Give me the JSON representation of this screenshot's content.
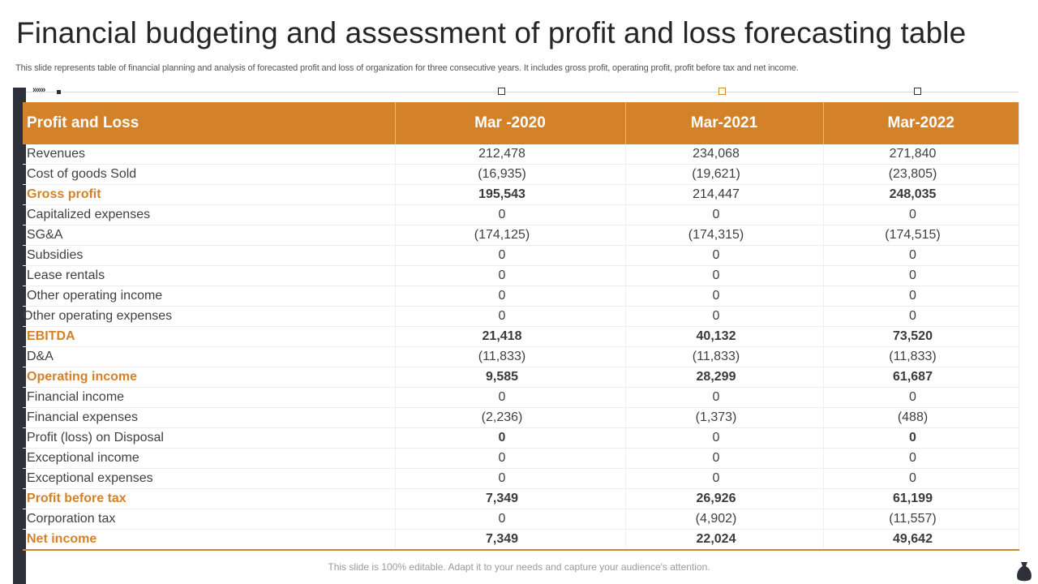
{
  "header": {
    "title": "Financial budgeting and assessment of profit and loss forecasting table",
    "subtitle": "This slide represents table of financial planning and analysis of forecasted profit and loss of organization for three consecutive years.  It includes gross profit, operating profit, profit before tax  and net income."
  },
  "decor": {
    "arrows": "»»»"
  },
  "table": {
    "columns": [
      "Profit and Loss",
      "Mar -2020",
      "Mar-2021",
      "Mar-2022"
    ],
    "rows": [
      {
        "label": "Revenues",
        "values": [
          "212,478",
          "234,068",
          "271,840"
        ],
        "highlight": false
      },
      {
        "label": "Cost of goods Sold",
        "values": [
          "(16,935)",
          "(19,621)",
          "(23,805)"
        ],
        "highlight": false
      },
      {
        "label": "Gross profit",
        "values": [
          "195,543",
          "214,447",
          "248,035"
        ],
        "highlight": true,
        "bold": [
          true,
          false,
          true
        ]
      },
      {
        "label": "Capitalized expenses",
        "values": [
          "0",
          "0",
          "0"
        ],
        "highlight": false
      },
      {
        "label": "SG&A",
        "values": [
          "(174,125)",
          "(174,315)",
          "(174,515)"
        ],
        "highlight": false
      },
      {
        "label": "Subsidies",
        "values": [
          "0",
          "0",
          "0"
        ],
        "highlight": false
      },
      {
        "label": "Lease rentals",
        "values": [
          "0",
          "0",
          "0"
        ],
        "highlight": false
      },
      {
        "label": "Other operating income",
        "values": [
          "0",
          "0",
          "0"
        ],
        "highlight": false
      },
      {
        "label": "Other operating expenses",
        "values": [
          "0",
          "0",
          "0"
        ],
        "highlight": false,
        "shift": true
      },
      {
        "label": "EBITDA",
        "values": [
          "21,418",
          "40,132",
          "73,520"
        ],
        "highlight": true,
        "bold": [
          true,
          true,
          true
        ]
      },
      {
        "label": "D&A",
        "values": [
          "(11,833)",
          "(11,833)",
          "(11,833)"
        ],
        "highlight": false
      },
      {
        "label": "Operating income",
        "values": [
          "9,585",
          "28,299",
          "61,687"
        ],
        "highlight": true,
        "bold": [
          true,
          true,
          true
        ]
      },
      {
        "label": "Financial income",
        "values": [
          "0",
          "0",
          "0"
        ],
        "highlight": false
      },
      {
        "label": "Financial expenses",
        "values": [
          "(2,236)",
          "(1,373)",
          "(488)"
        ],
        "highlight": false
      },
      {
        "label": "Profit (loss) on Disposal",
        "values": [
          "0",
          "0",
          "0"
        ],
        "highlight": false,
        "boldvals": [
          true,
          false,
          true
        ]
      },
      {
        "label": "Exceptional income",
        "values": [
          "0",
          "0",
          "0"
        ],
        "highlight": false
      },
      {
        "label": "Exceptional expenses",
        "values": [
          "0",
          "0",
          "0"
        ],
        "highlight": false
      },
      {
        "label": "Profit before tax",
        "values": [
          "7,349",
          "26,926",
          "61,199"
        ],
        "highlight": true,
        "bold": [
          true,
          true,
          true
        ]
      },
      {
        "label": "Corporation tax",
        "values": [
          "0",
          "(4,902)",
          "(11,557)"
        ],
        "highlight": false
      },
      {
        "label": "Net income",
        "values": [
          "7,349",
          "22,024",
          "49,642"
        ],
        "highlight": true,
        "bold": [
          true,
          true,
          true
        ]
      }
    ]
  },
  "footer": {
    "text": "This slide is 100% editable. Adapt it to your needs and capture your audience's attention."
  },
  "colors": {
    "accent": "#d38229",
    "sidebar": "#2d3039"
  }
}
